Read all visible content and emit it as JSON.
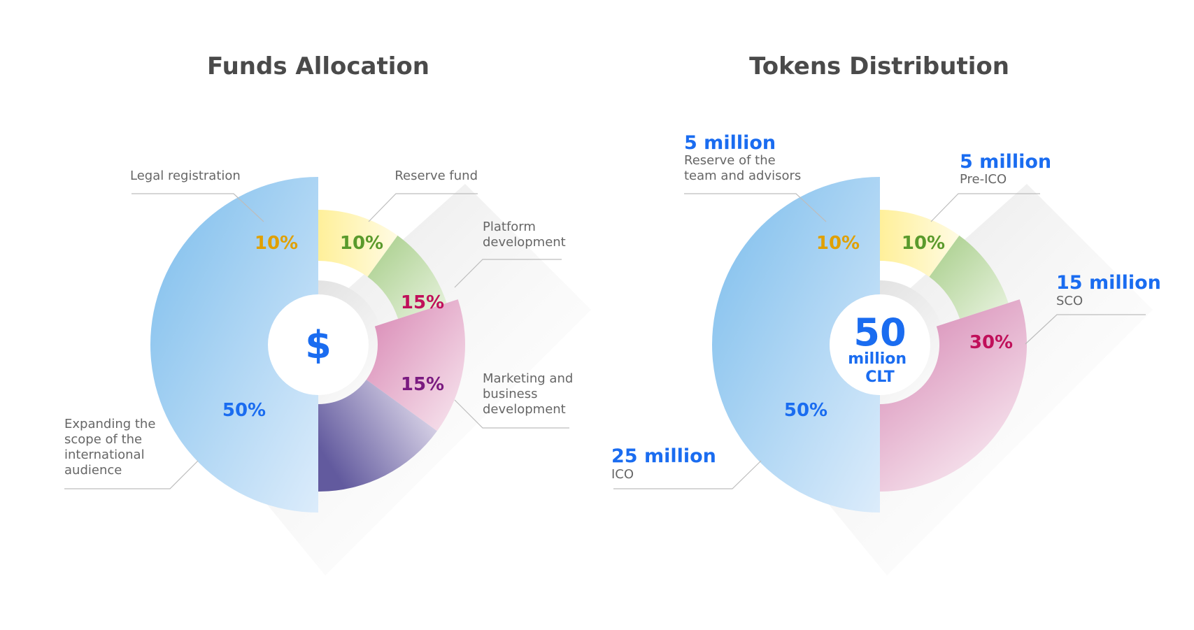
{
  "chart_data": [
    {
      "type": "pie",
      "title": "Funds Allocation",
      "center_symbol": "$",
      "slices": [
        {
          "label": "Legal registration",
          "value": 10,
          "value_label": "10%",
          "label_lines": [
            "Legal registration"
          ]
        },
        {
          "label": "Reserve fund",
          "value": 10,
          "value_label": "10%",
          "label_lines": [
            "Reserve fund"
          ]
        },
        {
          "label": "Platform development",
          "value": 15,
          "value_label": "15%",
          "label_lines": [
            "Platform",
            "development"
          ]
        },
        {
          "label": "Marketing and business development",
          "value": 15,
          "value_label": "15%",
          "label_lines": [
            "Marketing and",
            "business",
            "development"
          ]
        },
        {
          "label": "Expanding the scope of the international audience",
          "value": 50,
          "value_label": "50%",
          "label_lines": [
            "Expanding the",
            "scope of the",
            "international",
            "audience"
          ]
        }
      ]
    },
    {
      "type": "pie",
      "title": "Tokens Distribution",
      "center_value": "50",
      "center_lines": [
        "million",
        "CLT"
      ],
      "slices": [
        {
          "label": "Reserve of the team and advisors",
          "value": 10,
          "value_label": "10%",
          "amount": "5 million",
          "label_lines": [
            "Reserve of the",
            "team and advisors"
          ]
        },
        {
          "label": "Pre-ICO",
          "value": 10,
          "value_label": "10%",
          "amount": "5 million",
          "label_lines": [
            "Pre-ICO"
          ]
        },
        {
          "label": "SCO",
          "value": 30,
          "value_label": "30%",
          "amount": "15 million",
          "label_lines": [
            "SCO"
          ]
        },
        {
          "label": "ICO",
          "value": 50,
          "value_label": "50%",
          "amount": "25 million",
          "label_lines": [
            "ICO"
          ]
        }
      ]
    }
  ],
  "colors": {
    "title": "#4a4a4a",
    "label": "#666666",
    "amount": "#1a6cf0",
    "yellow": [
      "#fff4a8",
      "#fffbe0"
    ],
    "green": [
      "#a9cf8c",
      "#e6f1dc"
    ],
    "pink": [
      "#d98cb6",
      "#f7e4ee"
    ],
    "purple": [
      "#6e62a6",
      "#efeaf5"
    ],
    "blue": [
      "#7fc0ee",
      "#d6e9fa"
    ],
    "pct_yellow": "#e0a000",
    "pct_green": "#5a9a2c",
    "pct_pink": "#c0105a",
    "pct_purple": "#7a1a80",
    "pct_blue": "#1a6cf0"
  }
}
